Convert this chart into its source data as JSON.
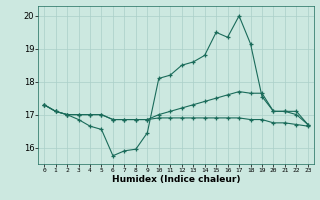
{
  "xlabel": "Humidex (Indice chaleur)",
  "x_ticks": [
    0,
    1,
    2,
    3,
    4,
    5,
    6,
    7,
    8,
    9,
    10,
    11,
    12,
    13,
    14,
    15,
    16,
    17,
    18,
    19,
    20,
    21,
    22,
    23
  ],
  "xlim": [
    -0.5,
    23.5
  ],
  "ylim": [
    15.5,
    20.3
  ],
  "y_ticks": [
    16,
    17,
    18,
    19,
    20
  ],
  "bg_color": "#cce8e0",
  "grid_color": "#aacfc8",
  "line_color": "#1a6b5a",
  "line1_y": [
    17.3,
    17.1,
    17.0,
    16.85,
    16.65,
    16.55,
    15.75,
    15.9,
    15.95,
    16.45,
    18.1,
    18.2,
    18.5,
    18.6,
    18.8,
    19.5,
    19.35,
    20.0,
    19.15,
    17.55,
    17.1,
    17.1,
    17.0,
    16.7
  ],
  "line2_y": [
    17.3,
    17.1,
    17.0,
    17.0,
    17.0,
    17.0,
    16.85,
    16.85,
    16.85,
    16.85,
    17.0,
    17.1,
    17.2,
    17.3,
    17.4,
    17.5,
    17.6,
    17.7,
    17.65,
    17.65,
    17.1,
    17.1,
    17.1,
    16.7
  ],
  "line3_y": [
    17.3,
    17.1,
    17.0,
    17.0,
    17.0,
    17.0,
    16.85,
    16.85,
    16.85,
    16.85,
    16.9,
    16.9,
    16.9,
    16.9,
    16.9,
    16.9,
    16.9,
    16.9,
    16.85,
    16.85,
    16.75,
    16.75,
    16.7,
    16.65
  ]
}
